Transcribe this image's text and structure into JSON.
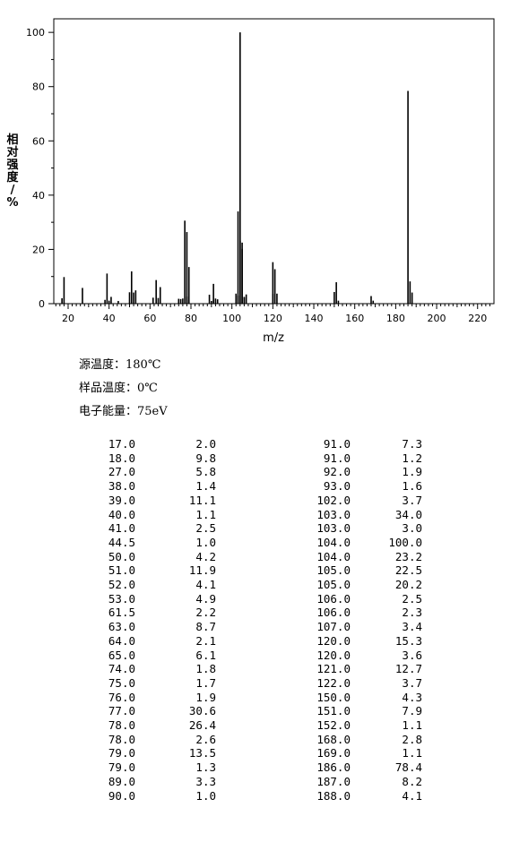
{
  "chart_data": {
    "type": "bar",
    "xlabel": "m/z",
    "ylabel": "相对强度/%",
    "xlim": [
      13,
      228
    ],
    "ylim": [
      0,
      105
    ],
    "xticks": [
      20,
      40,
      60,
      80,
      100,
      120,
      140,
      160,
      180,
      200,
      220
    ],
    "yticks": [
      0,
      20,
      40,
      60,
      80,
      100
    ],
    "grid": false,
    "peaks": [
      {
        "mz": 17.0,
        "intensity": 2.0
      },
      {
        "mz": 18.0,
        "intensity": 9.8
      },
      {
        "mz": 27.0,
        "intensity": 5.8
      },
      {
        "mz": 38.0,
        "intensity": 1.4
      },
      {
        "mz": 39.0,
        "intensity": 11.1
      },
      {
        "mz": 40.0,
        "intensity": 1.1
      },
      {
        "mz": 41.0,
        "intensity": 2.5
      },
      {
        "mz": 44.5,
        "intensity": 1.0
      },
      {
        "mz": 50.0,
        "intensity": 4.2
      },
      {
        "mz": 51.0,
        "intensity": 11.9
      },
      {
        "mz": 52.0,
        "intensity": 4.1
      },
      {
        "mz": 53.0,
        "intensity": 4.9
      },
      {
        "mz": 61.5,
        "intensity": 2.2
      },
      {
        "mz": 63.0,
        "intensity": 8.7
      },
      {
        "mz": 64.0,
        "intensity": 2.1
      },
      {
        "mz": 65.0,
        "intensity": 6.1
      },
      {
        "mz": 74.0,
        "intensity": 1.8
      },
      {
        "mz": 75.0,
        "intensity": 1.7
      },
      {
        "mz": 76.0,
        "intensity": 1.9
      },
      {
        "mz": 77.0,
        "intensity": 30.6
      },
      {
        "mz": 78.0,
        "intensity": 26.4
      },
      {
        "mz": 78.0,
        "intensity": 2.6
      },
      {
        "mz": 79.0,
        "intensity": 13.5
      },
      {
        "mz": 79.0,
        "intensity": 1.3
      },
      {
        "mz": 89.0,
        "intensity": 3.3
      },
      {
        "mz": 90.0,
        "intensity": 1.0
      },
      {
        "mz": 91.0,
        "intensity": 7.3
      },
      {
        "mz": 91.0,
        "intensity": 1.2
      },
      {
        "mz": 92.0,
        "intensity": 1.9
      },
      {
        "mz": 93.0,
        "intensity": 1.6
      },
      {
        "mz": 102.0,
        "intensity": 3.7
      },
      {
        "mz": 103.0,
        "intensity": 34.0
      },
      {
        "mz": 103.0,
        "intensity": 3.0
      },
      {
        "mz": 104.0,
        "intensity": 100.0
      },
      {
        "mz": 104.0,
        "intensity": 23.2
      },
      {
        "mz": 105.0,
        "intensity": 22.5
      },
      {
        "mz": 105.0,
        "intensity": 20.2
      },
      {
        "mz": 106.0,
        "intensity": 2.5
      },
      {
        "mz": 106.0,
        "intensity": 2.3
      },
      {
        "mz": 107.0,
        "intensity": 3.4
      },
      {
        "mz": 120.0,
        "intensity": 15.3
      },
      {
        "mz": 120.0,
        "intensity": 3.6
      },
      {
        "mz": 121.0,
        "intensity": 12.7
      },
      {
        "mz": 122.0,
        "intensity": 3.7
      },
      {
        "mz": 150.0,
        "intensity": 4.3
      },
      {
        "mz": 151.0,
        "intensity": 7.9
      },
      {
        "mz": 152.0,
        "intensity": 1.1
      },
      {
        "mz": 168.0,
        "intensity": 2.8
      },
      {
        "mz": 169.0,
        "intensity": 1.1
      },
      {
        "mz": 186.0,
        "intensity": 78.4
      },
      {
        "mz": 187.0,
        "intensity": 8.2
      },
      {
        "mz": 188.0,
        "intensity": 4.1
      }
    ]
  },
  "conditions": {
    "source_temp": "源温度：180℃",
    "sample_temp": "样品温度：0℃",
    "electron_energy": "电子能量：75eV"
  },
  "table": {
    "left_rows": [
      [
        "17.0",
        "2.0"
      ],
      [
        "18.0",
        "9.8"
      ],
      [
        "27.0",
        "5.8"
      ],
      [
        "38.0",
        "1.4"
      ],
      [
        "39.0",
        "11.1"
      ],
      [
        "40.0",
        "1.1"
      ],
      [
        "41.0",
        "2.5"
      ],
      [
        "44.5",
        "1.0"
      ],
      [
        "50.0",
        "4.2"
      ],
      [
        "51.0",
        "11.9"
      ],
      [
        "52.0",
        "4.1"
      ],
      [
        "53.0",
        "4.9"
      ],
      [
        "61.5",
        "2.2"
      ],
      [
        "63.0",
        "8.7"
      ],
      [
        "64.0",
        "2.1"
      ],
      [
        "65.0",
        "6.1"
      ],
      [
        "74.0",
        "1.8"
      ],
      [
        "75.0",
        "1.7"
      ],
      [
        "76.0",
        "1.9"
      ],
      [
        "77.0",
        "30.6"
      ],
      [
        "78.0",
        "26.4"
      ],
      [
        "78.0",
        "2.6"
      ],
      [
        "79.0",
        "13.5"
      ],
      [
        "79.0",
        "1.3"
      ],
      [
        "89.0",
        "3.3"
      ],
      [
        "90.0",
        "1.0"
      ]
    ],
    "right_rows": [
      [
        "91.0",
        "7.3"
      ],
      [
        "91.0",
        "1.2"
      ],
      [
        "92.0",
        "1.9"
      ],
      [
        "93.0",
        "1.6"
      ],
      [
        "102.0",
        "3.7"
      ],
      [
        "103.0",
        "34.0"
      ],
      [
        "103.0",
        "3.0"
      ],
      [
        "104.0",
        "100.0"
      ],
      [
        "104.0",
        "23.2"
      ],
      [
        "105.0",
        "22.5"
      ],
      [
        "105.0",
        "20.2"
      ],
      [
        "106.0",
        "2.5"
      ],
      [
        "106.0",
        "2.3"
      ],
      [
        "107.0",
        "3.4"
      ],
      [
        "120.0",
        "15.3"
      ],
      [
        "120.0",
        "3.6"
      ],
      [
        "121.0",
        "12.7"
      ],
      [
        "122.0",
        "3.7"
      ],
      [
        "150.0",
        "4.3"
      ],
      [
        "151.0",
        "7.9"
      ],
      [
        "152.0",
        "1.1"
      ],
      [
        "168.0",
        "2.8"
      ],
      [
        "169.0",
        "1.1"
      ],
      [
        "186.0",
        "78.4"
      ],
      [
        "187.0",
        "8.2"
      ],
      [
        "188.0",
        "4.1"
      ]
    ]
  }
}
